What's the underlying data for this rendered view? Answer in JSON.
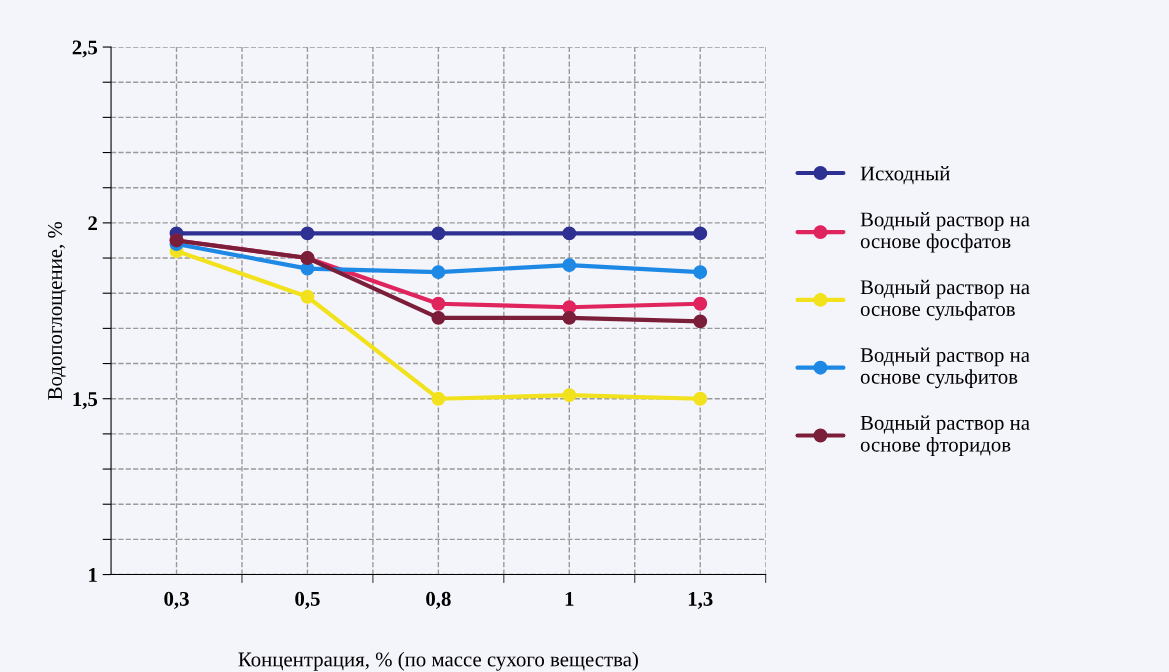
{
  "chart_data": {
    "type": "line",
    "xlabel": "Концентрация, % (по массе сухого вещества)",
    "ylabel": "Водопоглощение, %",
    "categories": [
      "0,3",
      "0,5",
      "0,8",
      "1",
      "1,3"
    ],
    "series": [
      {
        "name": "Исходный",
        "color": "#2e3192",
        "values": [
          1.97,
          1.97,
          1.97,
          1.97,
          1.97
        ]
      },
      {
        "name": "Водный раствор на\nоснове фосфатов",
        "color": "#e0245e",
        "values": [
          1.95,
          1.9,
          1.77,
          1.76,
          1.77
        ]
      },
      {
        "name": "Водный раствор на\nоснове сульфатов",
        "color": "#f2e21e",
        "values": [
          1.92,
          1.79,
          1.5,
          1.51,
          1.5
        ]
      },
      {
        "name": "Водный раствор на\nоснове сульфитов",
        "color": "#1e88e5",
        "values": [
          1.94,
          1.87,
          1.86,
          1.88,
          1.86
        ]
      },
      {
        "name": "Водный раствор на\nоснове фторидов",
        "color": "#7b1e3a",
        "values": [
          1.95,
          1.9,
          1.73,
          1.73,
          1.72
        ]
      }
    ],
    "ylim": [
      1,
      2.5
    ],
    "yticks": [
      {
        "value": 1,
        "label": "1"
      },
      {
        "value": 1.1,
        "label": null
      },
      {
        "value": 1.2,
        "label": null
      },
      {
        "value": 1.3,
        "label": null
      },
      {
        "value": 1.4,
        "label": null
      },
      {
        "value": 1.5,
        "label": "1,5"
      },
      {
        "value": 1.6,
        "label": null
      },
      {
        "value": 1.7,
        "label": null
      },
      {
        "value": 1.8,
        "label": null
      },
      {
        "value": 1.9,
        "label": null
      },
      {
        "value": 2,
        "label": "2"
      },
      {
        "value": 2.1,
        "label": null
      },
      {
        "value": 2.2,
        "label": null
      },
      {
        "value": 2.3,
        "label": null
      },
      {
        "value": 2.4,
        "label": null
      },
      {
        "value": 2.5,
        "label": "2,5"
      }
    ],
    "grid": true,
    "legend": "right",
    "marker": "circle",
    "line_style": "solid"
  }
}
